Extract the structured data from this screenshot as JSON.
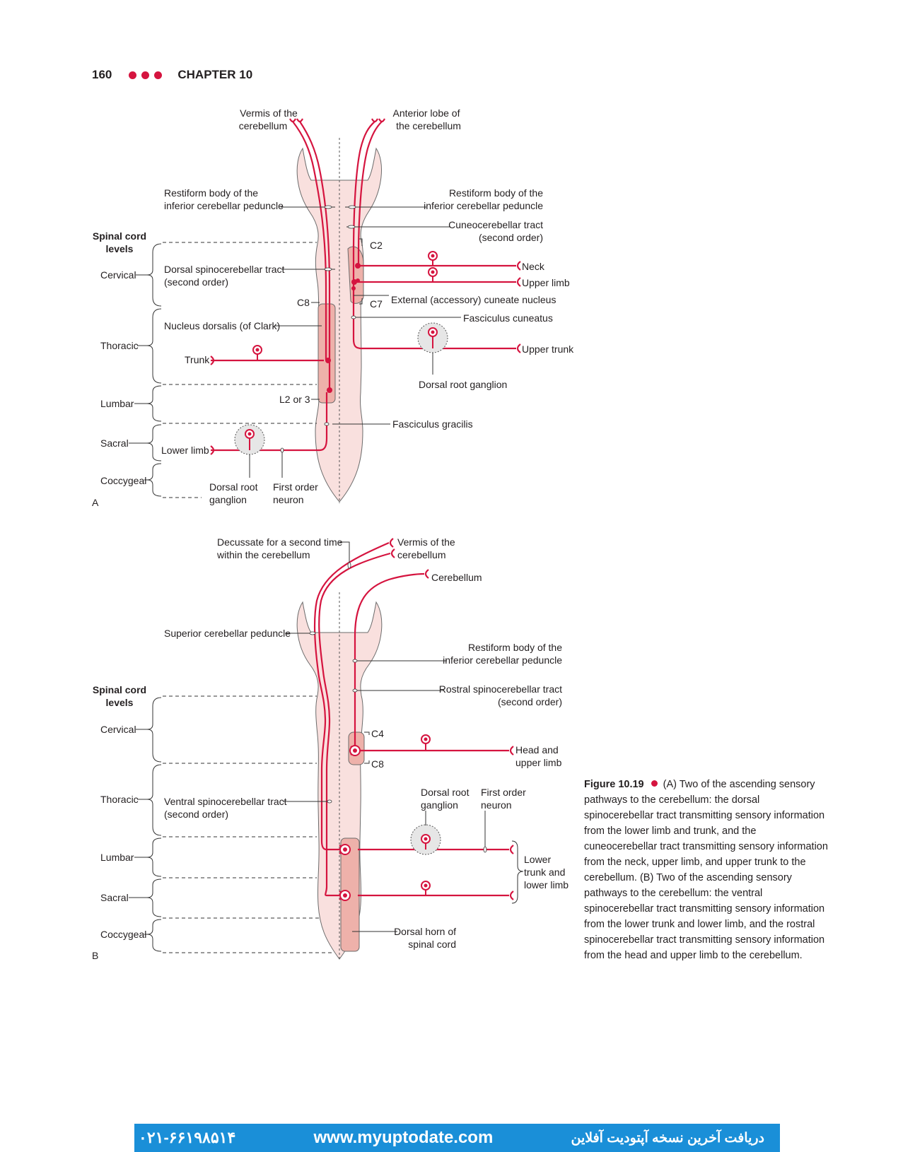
{
  "header": {
    "page_number": "160",
    "chapter": "CHAPTER 10"
  },
  "colors": {
    "accent": "#d5143f",
    "cord_fill": "#f9e0de",
    "nucleus_fill": "#eeb1aa",
    "banner": "#1a8fd8"
  },
  "panel_a": {
    "letter": "A",
    "vermis": [
      "Vermis of the",
      "cerebellum"
    ],
    "anterior_lobe": [
      "Anterior lobe of",
      "the cerebellum"
    ],
    "restiform_left": [
      "Restiform body of the",
      "inferior cerebellar peduncle"
    ],
    "restiform_right": [
      "Restiform body of the",
      "inferior cerebellar peduncle"
    ],
    "cuneocerebellar": [
      "Cuneocerebellar tract",
      "(second order)"
    ],
    "spinal_levels": [
      "Spinal cord",
      "levels"
    ],
    "level_cervical": "Cervical",
    "level_thoracic": "Thoracic",
    "level_lumbar": "Lumbar",
    "level_sacral": "Sacral",
    "level_coccygeal": "Coccygeal",
    "c2": "C2",
    "c7": "C7",
    "c8": "C8",
    "l2": "L2 or 3",
    "dorsal_sct": [
      "Dorsal spinocerebellar tract",
      "(second order)"
    ],
    "neck": "Neck",
    "upper_limb": "Upper limb",
    "ext_cuneate": "External (accessory) cuneate nucleus",
    "fasc_cuneatus": "Fasciculus cuneatus",
    "nucleus_dorsalis": "Nucleus dorsalis (of Clark)",
    "trunk": "Trunk",
    "upper_trunk": "Upper trunk",
    "drg_right": "Dorsal root ganglion",
    "fasc_gracilis": "Fasciculus gracilis",
    "lower_limb": "Lower limb",
    "drg_bottom": [
      "Dorsal root",
      "ganglion"
    ],
    "first_order": [
      "First order",
      "neuron"
    ]
  },
  "panel_b": {
    "letter": "B",
    "decussate": [
      "Decussate for a second time",
      "within the cerebellum"
    ],
    "vermis": [
      "Vermis of the",
      "cerebellum"
    ],
    "cerebellum": "Cerebellum",
    "superior_peduncle": "Superior cerebellar peduncle",
    "restiform": [
      "Restiform body of the",
      "inferior cerebellar peduncle"
    ],
    "rostral_sct": [
      "Rostral spinocerebellar tract",
      "(second order)"
    ],
    "spinal_levels": [
      "Spinal cord",
      "levels"
    ],
    "level_cervical": "Cervical",
    "level_thoracic": "Thoracic",
    "level_lumbar": "Lumbar",
    "level_sacral": "Sacral",
    "level_coccygeal": "Coccygeal",
    "c4": "C4",
    "c8": "C8",
    "head_upper": [
      "Head and",
      "upper limb"
    ],
    "ventral_sct": [
      "Ventral spinocerebellar tract",
      "(second order)"
    ],
    "drg": [
      "Dorsal root",
      "ganglion"
    ],
    "first_order": [
      "First order",
      "neuron"
    ],
    "lower_trunk": [
      "Lower",
      "trunk and",
      "lower limb"
    ],
    "dorsal_horn": [
      "Dorsal horn of",
      "spinal cord"
    ]
  },
  "caption": {
    "figure_label": "Figure 10.19",
    "text": "(A) Two of the ascending sensory pathways to the cerebellum: the dorsal spinocerebellar tract transmitting sensory information from the lower limb and trunk, and the cuneocerebellar tract transmitting sensory information from the neck, upper limb, and upper trunk to the cerebellum. (B) Two of the ascending sensory pathways to the cerebellum: the ventral spinocerebellar tract transmitting sensory information from the lower trunk and lower limb, and the rostral spinocerebellar tract transmitting sensory information from the head and upper limb to the cerebellum."
  },
  "banner": {
    "phone": "۰۲۱-۶۶۱۹۸۵۱۴",
    "url": "www.myuptodate.com",
    "persian": "دریافت آخرین نسخه آپتودیت آفلاین"
  }
}
